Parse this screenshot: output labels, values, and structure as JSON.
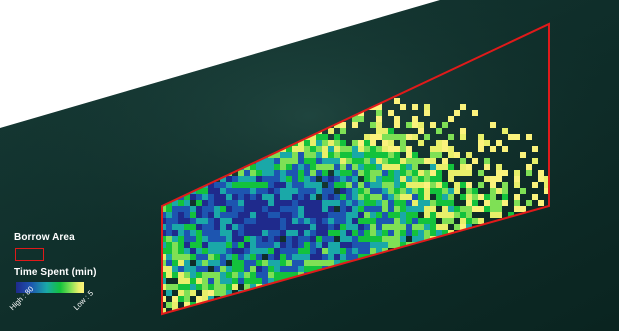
{
  "legend": {
    "borrow_area_label": "Borrow Area",
    "time_spent_label": "Time Spent (min)",
    "high_label": "High : 80",
    "low_label": "Low : 5",
    "high_value": 80,
    "low_value": 5
  },
  "colors": {
    "borrow_area_outline": "#e01a1a",
    "ramp": [
      "#1f2a8c",
      "#1d55b0",
      "#1aa8a8",
      "#13c23c",
      "#7fe055",
      "#e8ef6a",
      "#fbf27c"
    ],
    "water": "#0d2a26",
    "land": "#ffffff"
  }
}
